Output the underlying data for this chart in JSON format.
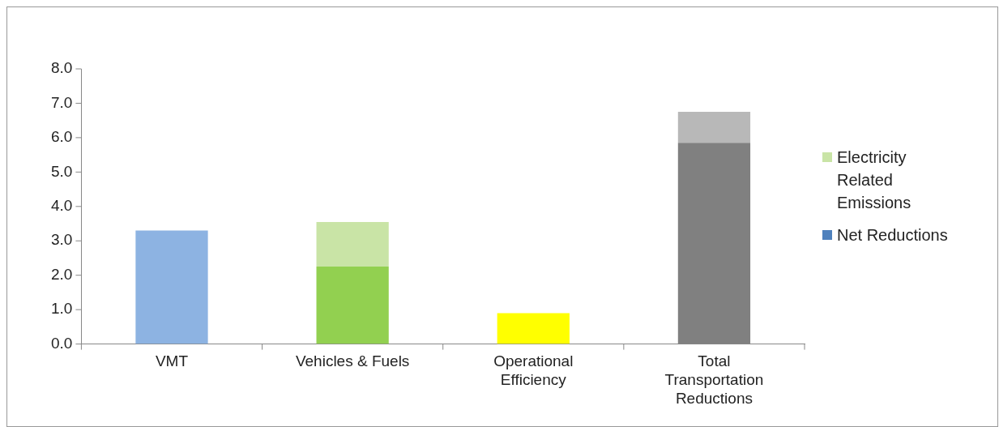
{
  "chart_data": {
    "type": "bar",
    "stacked": true,
    "categories": [
      "VMT",
      "Vehicles & Fuels",
      "Operational Efficiency",
      "Total Transportation Reductions"
    ],
    "series": [
      {
        "name": "Net Reductions",
        "color": "#4f81bd",
        "colors": [
          "#8db3e2",
          "#92d050",
          "#ffff00",
          "#808080"
        ],
        "values": [
          3.3,
          2.25,
          0.9,
          5.85
        ]
      },
      {
        "name": "Electricity Related Emissions",
        "color": "#c9e4a6",
        "colors": [
          "#c9e4a6",
          "#c9e4a6",
          "#c9e4a6",
          "#b8b8b8"
        ],
        "values": [
          null,
          1.3,
          null,
          0.9
        ]
      }
    ],
    "ylim": [
      0,
      8
    ],
    "yticks": [
      {
        "value": 0,
        "label": "0.0"
      },
      {
        "value": 1,
        "label": "1.0"
      },
      {
        "value": 2,
        "label": "2.0"
      },
      {
        "value": 3,
        "label": "3.0"
      },
      {
        "value": 4,
        "label": "4.0"
      },
      {
        "value": 5,
        "label": "5.0"
      },
      {
        "value": 6,
        "label": "6.0"
      },
      {
        "value": 7,
        "label": "7.0"
      },
      {
        "value": 8,
        "label": "8.0"
      }
    ],
    "grid": false,
    "legend": "right"
  }
}
